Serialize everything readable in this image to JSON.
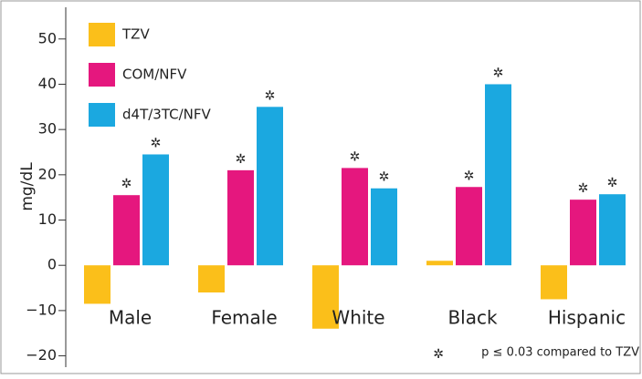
{
  "chart_data": {
    "type": "bar",
    "ylabel": "mg/dL",
    "categories": [
      "Male",
      "Female",
      "White",
      "Black",
      "Hispanic"
    ],
    "series": [
      {
        "name": "TZV",
        "color": "#fbbf1a",
        "values": [
          -8.5,
          -6,
          -14,
          1,
          -7.5
        ]
      },
      {
        "name": "COM/NFV",
        "color": "#e5177e",
        "values": [
          15.5,
          21,
          21.5,
          17.3,
          14.5
        ]
      },
      {
        "name": "d4T/3TC/NFV",
        "color": "#1ba8e0",
        "values": [
          24.5,
          35,
          17,
          40,
          15.7
        ]
      }
    ],
    "ylim": [
      -22.5,
      57
    ],
    "yticks": [
      {
        "value": -20,
        "label": "−20"
      },
      {
        "value": -10,
        "label": "−10"
      },
      0,
      10,
      20,
      30,
      40,
      50
    ],
    "significance_marker": "✲",
    "footnote": "p ≤ 0.03 compared to TZV",
    "legend": "upper left"
  }
}
